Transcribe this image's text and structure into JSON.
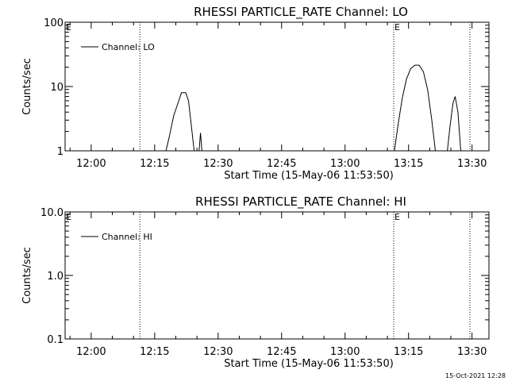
{
  "chart_data": [
    {
      "type": "line",
      "title": "RHESSI PARTICLE_RATE Channel: LO",
      "xlabel": "Start Time (15-May-06 11:53:50)",
      "ylabel": "Counts/sec",
      "y_scale": "log",
      "ylim": [
        1,
        100
      ],
      "xlim": [
        "11:53:50",
        "13:34:00"
      ],
      "x_ticks": [
        "12:00",
        "12:15",
        "12:30",
        "12:45",
        "13:00",
        "13:15",
        "13:30"
      ],
      "y_ticks": [
        "1",
        "10",
        "100"
      ],
      "grid": false,
      "legend": {
        "position": "top-left",
        "entries": [
          "Channel: LO"
        ]
      },
      "markers": [
        {
          "time": "11:53:50",
          "label": "E",
          "line": false
        },
        {
          "time": "12:11:30",
          "label": "",
          "line": true
        },
        {
          "time": "13:11:30",
          "label": "E",
          "line": true
        },
        {
          "time": "13:29:30",
          "label": "",
          "line": true
        }
      ],
      "series": [
        {
          "name": "Channel: LO",
          "segments": [
            [
              [
                "12:17:40",
                1.0
              ],
              [
                "12:18:30",
                1.7
              ],
              [
                "12:19:30",
                3.5
              ],
              [
                "12:20:30",
                5.5
              ],
              [
                "12:21:20",
                8.0
              ],
              [
                "12:22:20",
                8.0
              ],
              [
                "12:23:00",
                6.0
              ],
              [
                "12:23:40",
                2.5
              ],
              [
                "12:24:20",
                1.0
              ]
            ],
            [
              [
                "12:25:30",
                1.0
              ],
              [
                "12:25:50",
                1.9
              ],
              [
                "12:26:10",
                1.0
              ]
            ],
            [
              [
                "13:11:40",
                1.0
              ],
              [
                "13:12:30",
                2.5
              ],
              [
                "13:13:30",
                6.5
              ],
              [
                "13:14:30",
                13.0
              ],
              [
                "13:15:30",
                19.0
              ],
              [
                "13:16:30",
                21.5
              ],
              [
                "13:17:30",
                21.5
              ],
              [
                "13:18:30",
                17.0
              ],
              [
                "13:19:30",
                9.0
              ],
              [
                "13:20:30",
                3.0
              ],
              [
                "13:21:20",
                1.0
              ]
            ],
            [
              [
                "13:24:10",
                1.0
              ],
              [
                "13:24:50",
                2.5
              ],
              [
                "13:25:30",
                5.5
              ],
              [
                "13:26:00",
                7.0
              ],
              [
                "13:26:40",
                4.0
              ],
              [
                "13:27:20",
                1.0
              ]
            ]
          ]
        }
      ]
    },
    {
      "type": "line",
      "title": "RHESSI PARTICLE_RATE Channel: HI",
      "xlabel": "Start Time (15-May-06 11:53:50)",
      "ylabel": "Counts/sec",
      "y_scale": "log",
      "ylim": [
        0.1,
        10
      ],
      "xlim": [
        "11:53:50",
        "13:34:00"
      ],
      "x_ticks": [
        "12:00",
        "12:15",
        "12:30",
        "12:45",
        "13:00",
        "13:15",
        "13:30"
      ],
      "y_ticks": [
        "0.1",
        "1.0",
        "10.0"
      ],
      "grid": false,
      "legend": {
        "position": "top-left",
        "entries": [
          "Channel: HI"
        ]
      },
      "markers": [
        {
          "time": "11:53:50",
          "label": "E",
          "line": false
        },
        {
          "time": "12:11:30",
          "label": "",
          "line": true
        },
        {
          "time": "13:11:30",
          "label": "E",
          "line": true
        },
        {
          "time": "13:29:30",
          "label": "",
          "line": true
        }
      ],
      "series": [
        {
          "name": "Channel: HI",
          "segments": []
        }
      ]
    }
  ],
  "footer": {
    "timestamp": "15-Oct-2021 12:28"
  }
}
